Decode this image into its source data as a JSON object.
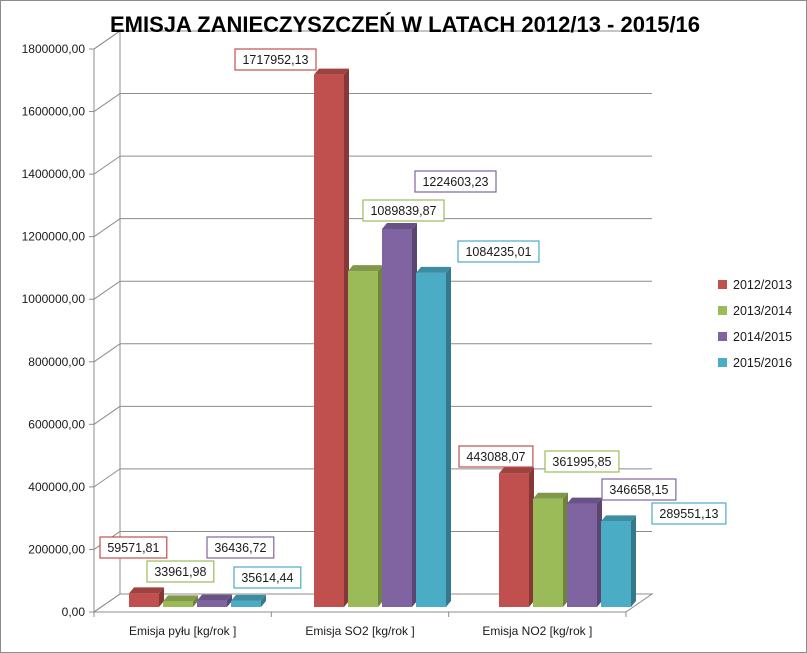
{
  "chart_data": {
    "type": "bar",
    "title": "EMISJA ZANIECZYSZCZEŃ W LATACH 2012/13 - 2015/16",
    "xlabel": "",
    "ylabel": "",
    "categories": [
      "Emisja pyłu [kg/rok ]",
      "Emisja SO2 [kg/rok ]",
      "Emisja NO2 [kg/rok ]"
    ],
    "series": [
      {
        "name": "2012/2013",
        "color": "#c0504d",
        "values": [
          59571.81,
          1717952.13,
          443088.07
        ],
        "labels": [
          "59571,81",
          "1717952,13",
          "443088,07"
        ]
      },
      {
        "name": "2013/2014",
        "color": "#9bbb59",
        "values": [
          33961.98,
          1089839.87,
          361995.85
        ],
        "labels": [
          "33961,98",
          "1089839,87",
          "361995,85"
        ]
      },
      {
        "name": "2014/2015",
        "color": "#8064a2",
        "values": [
          36436.72,
          1224603.23,
          346658.15
        ],
        "labels": [
          "36436,72",
          "1224603,23",
          "346658,15"
        ]
      },
      {
        "name": "2015/2016",
        "color": "#4bacc6",
        "values": [
          35614.44,
          1084235.01,
          289551.13
        ],
        "labels": [
          "35614,44",
          "1084235,01",
          "289551,13"
        ]
      }
    ],
    "ylim": [
      0,
      1800000
    ],
    "yticks": [
      0,
      200000,
      400000,
      600000,
      800000,
      1000000,
      1200000,
      1400000,
      1600000,
      1800000
    ],
    "ytick_labels": [
      "0,00",
      "200000,00",
      "400000,00",
      "600000,00",
      "800000,00",
      "1000000,00",
      "1200000,00",
      "1400000,00",
      "1600000,00",
      "1800000,00"
    ],
    "grid": true,
    "style": "3d-clustered-column",
    "legend": "right"
  }
}
